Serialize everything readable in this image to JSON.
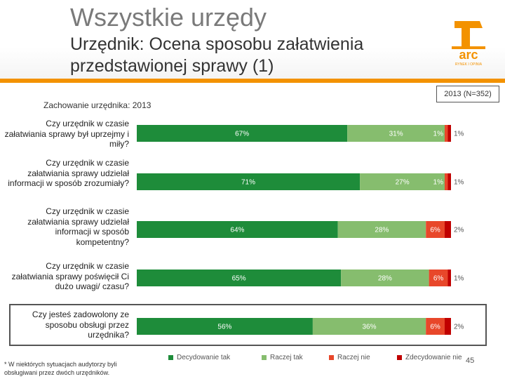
{
  "header": {
    "deck_title": "Wszystkie urzędy",
    "slide_title": "Urzędnik: Ocena sposobu załatwienia przedstawionej sprawy (1)",
    "logo_text": "arc",
    "logo_subtext": "RYNEK I OPINIA"
  },
  "sample_note": "2013 (N=352)",
  "footnote": "* W niektórych sytuacjach audytorzy byli obsługiwani przez dwóch urzędników.",
  "page_number": "45",
  "colors": {
    "decydowanie_tak": "#1e8c3a",
    "raczej_tak": "#86bd6e",
    "raczej_nie": "#e8472a",
    "zdecydowanie_nie": "#c00000",
    "accent_orange": "#f39200"
  },
  "chart_data": {
    "type": "bar",
    "orientation": "horizontal",
    "stacked": true,
    "title": "Zachowanie urzędnika: 2013",
    "xlim": [
      0,
      100
    ],
    "categories": [
      "Czy urzędnik w czasie załatwiania sprawy był uprzejmy i miły?",
      "Czy urzędnik w czasie załatwiania sprawy udzielał informacji w sposób zrozumiały?",
      "Czy urzędnik w czasie załatwiania sprawy udzielał informacji w sposób kompetentny?",
      "Czy urzędnik w czasie załatwiania sprawy poświęcił Ci dużo uwagi/ czasu?",
      "Czy jesteś zadowolony ze sposobu obsługi przez urzędnika?"
    ],
    "series": [
      {
        "name": "Decydowanie tak",
        "values": [
          67,
          71,
          64,
          65,
          56
        ],
        "labels": [
          "67%",
          "71%",
          "64%",
          "65%",
          "56%"
        ]
      },
      {
        "name": "Raczej tak",
        "values": [
          31,
          27,
          28,
          28,
          36
        ],
        "labels": [
          "31%",
          "27%",
          "28%",
          "28%",
          "36%"
        ]
      },
      {
        "name": "Raczej nie",
        "values": [
          1,
          1,
          6,
          6,
          6
        ],
        "labels": [
          "1%",
          "1%",
          "6%",
          "6%",
          "6%"
        ]
      },
      {
        "name": "Zdecydowanie nie",
        "values": [
          1,
          1,
          2,
          1,
          2
        ],
        "labels": [
          "1%",
          "1%",
          "2%",
          "1%",
          "2%"
        ]
      }
    ],
    "highlighted_category": 4,
    "legend_position": "bottom"
  }
}
